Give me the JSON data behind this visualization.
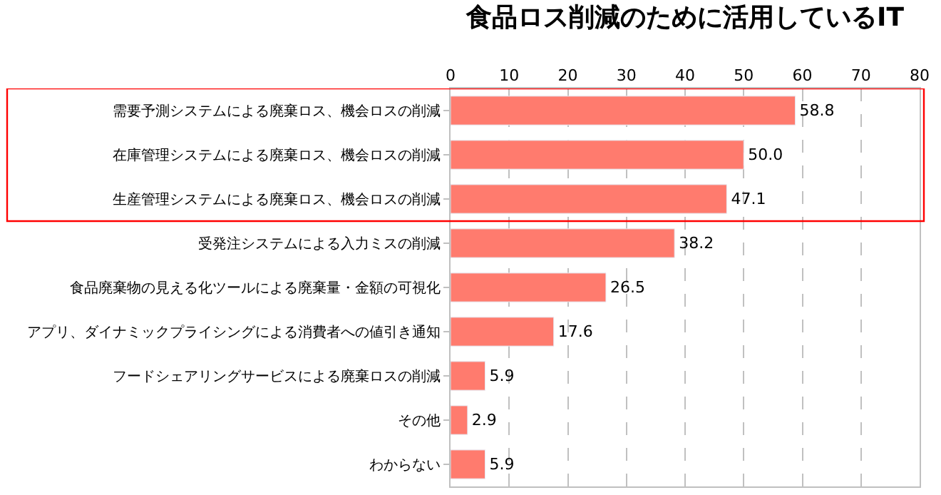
{
  "chart_data": {
    "type": "bar",
    "orientation": "horizontal",
    "title": "食品ロス削減のために活用しているIT",
    "categories": [
      "需要予測システムによる廃棄ロス、機会ロスの削減",
      "在庫管理システムによる廃棄ロス、機会ロスの削減",
      "生産管理システムによる廃棄ロス、機会ロスの削減",
      "受発注システムによる入力ミスの削減",
      "食品廃棄物の見える化ツールによる廃棄量・金額の可視化",
      "アプリ、ダイナミックプライシングによる消費者への値引き通知",
      "フードシェアリングサービスによる廃棄ロスの削減",
      "その他",
      "わからない"
    ],
    "values": [
      58.8,
      50.0,
      47.1,
      38.2,
      26.5,
      17.6,
      5.9,
      2.9,
      5.9
    ],
    "value_labels": [
      "58.8",
      "50.0",
      "47.1",
      "38.2",
      "26.5",
      "17.6",
      "5.9",
      "2.9",
      "5.9"
    ],
    "color": "#ff7b6e",
    "xlim": [
      0,
      80
    ],
    "xticks": [
      0,
      10,
      20,
      30,
      40,
      50,
      60,
      70,
      80
    ],
    "grid": "x",
    "legend": false
  }
}
